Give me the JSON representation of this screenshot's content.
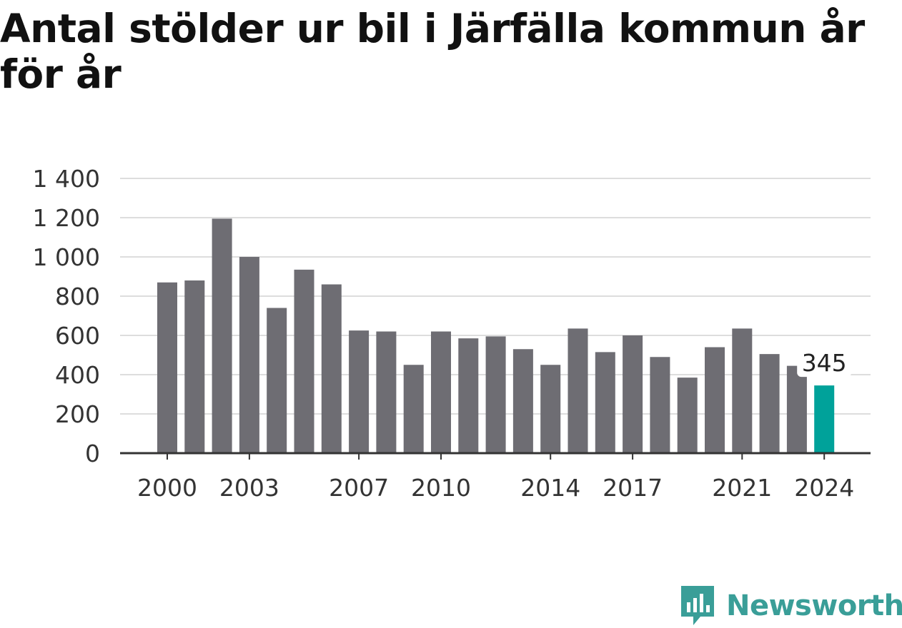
{
  "title": "Antal stölder ur bil i Järfälla kommun år för år",
  "brand": {
    "name": "Newsworthy",
    "icon": "newsworthy-logo-icon",
    "color": "#3a9e98"
  },
  "colors": {
    "bar": "#6e6d73",
    "highlight": "#00a29a",
    "grid": "#dddddd",
    "axis": "#333333"
  },
  "chart_data": {
    "type": "bar",
    "title": "Antal stölder ur bil i Järfälla kommun år för år",
    "xlabel": "",
    "ylabel": "",
    "ylim": [
      0,
      1400
    ],
    "yticks": [
      0,
      200,
      400,
      600,
      800,
      1000,
      1200,
      1400
    ],
    "ytick_labels": [
      "0",
      "200",
      "400",
      "600",
      "800",
      "1 000",
      "1 200",
      "1 400"
    ],
    "categories": [
      "2000",
      "2001",
      "2002",
      "2003",
      "2004",
      "2005",
      "2006",
      "2007",
      "2008",
      "2009",
      "2010",
      "2011",
      "2012",
      "2013",
      "2014",
      "2015",
      "2016",
      "2017",
      "2018",
      "2019",
      "2020",
      "2021",
      "2022",
      "2023",
      "2024"
    ],
    "xtick_labels": [
      "2000",
      "2003",
      "2007",
      "2010",
      "2014",
      "2017",
      "2021",
      "2024"
    ],
    "values": [
      870,
      880,
      1195,
      1000,
      740,
      935,
      860,
      625,
      620,
      450,
      620,
      585,
      595,
      530,
      450,
      635,
      515,
      600,
      490,
      385,
      540,
      635,
      505,
      445,
      345
    ],
    "highlight": {
      "category": "2024",
      "label": "345"
    },
    "grid": true,
    "legend": "none"
  }
}
